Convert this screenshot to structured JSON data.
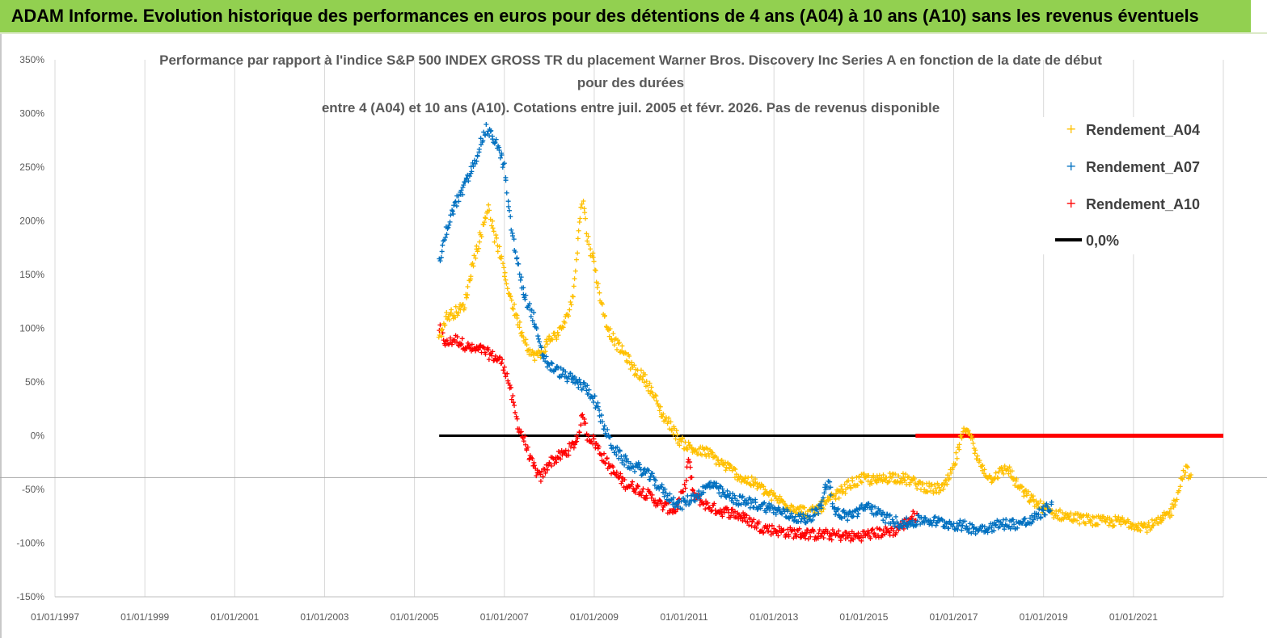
{
  "header": {
    "banner": "ADAM Informe. Evolution historique des performances en euros pour des détentions de 4 ans (A04) à 10 ans (A10) sans les revenus éventuels"
  },
  "colors": {
    "banner_bg": "#92d050",
    "A04": "#ffc000",
    "A07": "#0070c0",
    "A10": "#ff0000",
    "zero_line": "#000000",
    "grid": "#d9d9d9"
  },
  "chart_data": {
    "type": "scatter",
    "title_lines": [
      "Performance par rapport à l'indice S&P 500 INDEX GROSS TR  du placement Warner Bros. Discovery Inc Series A en fonction de la date de début",
      "pour des durées",
      "entre 4 (A04) et 10 ans (A10). Cotations entre juil. 2005 et févr. 2026. Pas de revenus disponible"
    ],
    "x_ticks": [
      "01/01/1997",
      "01/01/1999",
      "01/01/2001",
      "01/01/2003",
      "01/01/2005",
      "01/01/2007",
      "01/01/2009",
      "01/01/2011",
      "01/01/2013",
      "01/01/2015",
      "01/01/2017",
      "01/01/2019",
      "01/01/2021"
    ],
    "y_ticks": [
      "350%",
      "300%",
      "250%",
      "200%",
      "150%",
      "100%",
      "50%",
      "0%",
      "-50%",
      "-100%",
      "-150%"
    ],
    "ylim": [
      -150,
      350
    ],
    "xlim": [
      1997.0,
      2023.0
    ],
    "grid": "vertical",
    "legend_position": "top-right",
    "series": [
      {
        "name": "Rendement_A04",
        "points": [
          [
            2005.55,
            90
          ],
          [
            2005.7,
            110
          ],
          [
            2005.9,
            115
          ],
          [
            2006.1,
            120
          ],
          [
            2006.3,
            160
          ],
          [
            2006.5,
            190
          ],
          [
            2006.65,
            215
          ],
          [
            2006.75,
            190
          ],
          [
            2006.9,
            170
          ],
          [
            2007.0,
            150
          ],
          [
            2007.2,
            120
          ],
          [
            2007.4,
            95
          ],
          [
            2007.6,
            75
          ],
          [
            2007.8,
            75
          ],
          [
            2008.0,
            90
          ],
          [
            2008.2,
            95
          ],
          [
            2008.4,
            110
          ],
          [
            2008.55,
            135
          ],
          [
            2008.65,
            195
          ],
          [
            2008.75,
            220
          ],
          [
            2008.85,
            185
          ],
          [
            2009.0,
            160
          ],
          [
            2009.15,
            125
          ],
          [
            2009.3,
            100
          ],
          [
            2009.5,
            85
          ],
          [
            2009.7,
            75
          ],
          [
            2009.9,
            60
          ],
          [
            2010.1,
            55
          ],
          [
            2010.3,
            40
          ],
          [
            2010.5,
            20
          ],
          [
            2010.7,
            10
          ],
          [
            2010.9,
            -5
          ],
          [
            2011.1,
            -10
          ],
          [
            2011.3,
            -15
          ],
          [
            2011.5,
            -15
          ],
          [
            2011.8,
            -25
          ],
          [
            2012.0,
            -30
          ],
          [
            2012.3,
            -40
          ],
          [
            2012.6,
            -45
          ],
          [
            2012.9,
            -55
          ],
          [
            2013.2,
            -62
          ],
          [
            2013.5,
            -68
          ],
          [
            2013.8,
            -72
          ],
          [
            2014.1,
            -65
          ],
          [
            2014.4,
            -55
          ],
          [
            2014.7,
            -45
          ],
          [
            2015.0,
            -40
          ],
          [
            2015.3,
            -42
          ],
          [
            2015.6,
            -38
          ],
          [
            2015.9,
            -40
          ],
          [
            2016.2,
            -45
          ],
          [
            2016.5,
            -50
          ],
          [
            2016.8,
            -48
          ],
          [
            2017.0,
            -30
          ],
          [
            2017.15,
            -5
          ],
          [
            2017.3,
            10
          ],
          [
            2017.5,
            -20
          ],
          [
            2017.8,
            -40
          ],
          [
            2018.0,
            -35
          ],
          [
            2018.2,
            -30
          ],
          [
            2018.4,
            -45
          ],
          [
            2018.6,
            -55
          ],
          [
            2018.9,
            -65
          ],
          [
            2019.2,
            -72
          ],
          [
            2019.5,
            -75
          ],
          [
            2019.9,
            -78
          ],
          [
            2020.3,
            -80
          ],
          [
            2020.7,
            -80
          ],
          [
            2021.0,
            -82
          ],
          [
            2021.3,
            -85
          ],
          [
            2021.6,
            -80
          ],
          [
            2021.85,
            -70
          ],
          [
            2022.0,
            -50
          ],
          [
            2022.15,
            -30
          ],
          [
            2022.3,
            -40
          ]
        ]
      },
      {
        "name": "Rendement_A07",
        "points": [
          [
            2005.55,
            160
          ],
          [
            2005.7,
            190
          ],
          [
            2005.9,
            215
          ],
          [
            2006.1,
            230
          ],
          [
            2006.3,
            250
          ],
          [
            2006.45,
            270
          ],
          [
            2006.6,
            285
          ],
          [
            2006.8,
            275
          ],
          [
            2007.0,
            250
          ],
          [
            2007.1,
            210
          ],
          [
            2007.25,
            170
          ],
          [
            2007.45,
            130
          ],
          [
            2007.65,
            110
          ],
          [
            2007.8,
            80
          ],
          [
            2008.0,
            65
          ],
          [
            2008.2,
            60
          ],
          [
            2008.4,
            55
          ],
          [
            2008.6,
            50
          ],
          [
            2008.8,
            45
          ],
          [
            2009.0,
            35
          ],
          [
            2009.2,
            10
          ],
          [
            2009.4,
            -10
          ],
          [
            2009.6,
            -20
          ],
          [
            2009.8,
            -28
          ],
          [
            2010.0,
            -30
          ],
          [
            2010.3,
            -40
          ],
          [
            2010.6,
            -55
          ],
          [
            2010.9,
            -65
          ],
          [
            2011.1,
            -60
          ],
          [
            2011.3,
            -55
          ],
          [
            2011.6,
            -45
          ],
          [
            2011.9,
            -55
          ],
          [
            2012.2,
            -60
          ],
          [
            2012.5,
            -63
          ],
          [
            2012.8,
            -66
          ],
          [
            2013.1,
            -70
          ],
          [
            2013.4,
            -75
          ],
          [
            2013.7,
            -78
          ],
          [
            2014.0,
            -70
          ],
          [
            2014.2,
            -40
          ],
          [
            2014.35,
            -70
          ],
          [
            2014.6,
            -75
          ],
          [
            2014.9,
            -70
          ],
          [
            2015.1,
            -65
          ],
          [
            2015.4,
            -75
          ],
          [
            2015.7,
            -80
          ],
          [
            2016.0,
            -82
          ],
          [
            2016.3,
            -78
          ],
          [
            2016.6,
            -80
          ],
          [
            2016.9,
            -82
          ],
          [
            2017.2,
            -84
          ],
          [
            2017.5,
            -87
          ],
          [
            2017.8,
            -85
          ],
          [
            2018.1,
            -82
          ],
          [
            2018.4,
            -82
          ],
          [
            2018.7,
            -80
          ],
          [
            2019.0,
            -70
          ],
          [
            2019.2,
            -65
          ]
        ]
      },
      {
        "name": "Rendement_A10",
        "points": [
          [
            2005.55,
            100
          ],
          [
            2005.7,
            85
          ],
          [
            2005.9,
            90
          ],
          [
            2006.1,
            85
          ],
          [
            2006.3,
            80
          ],
          [
            2006.5,
            80
          ],
          [
            2006.7,
            75
          ],
          [
            2006.9,
            70
          ],
          [
            2007.0,
            65
          ],
          [
            2007.15,
            40
          ],
          [
            2007.3,
            10
          ],
          [
            2007.45,
            -5
          ],
          [
            2007.6,
            -25
          ],
          [
            2007.8,
            -40
          ],
          [
            2008.0,
            -25
          ],
          [
            2008.2,
            -20
          ],
          [
            2008.4,
            -15
          ],
          [
            2008.6,
            -5
          ],
          [
            2008.75,
            20
          ],
          [
            2008.85,
            0
          ],
          [
            2009.0,
            -5
          ],
          [
            2009.2,
            -20
          ],
          [
            2009.45,
            -35
          ],
          [
            2009.7,
            -45
          ],
          [
            2009.9,
            -48
          ],
          [
            2010.2,
            -55
          ],
          [
            2010.5,
            -65
          ],
          [
            2010.8,
            -70
          ],
          [
            2011.0,
            -50
          ],
          [
            2011.1,
            -20
          ],
          [
            2011.2,
            -55
          ],
          [
            2011.5,
            -65
          ],
          [
            2011.8,
            -70
          ],
          [
            2012.1,
            -72
          ],
          [
            2012.4,
            -78
          ],
          [
            2012.7,
            -85
          ],
          [
            2013.0,
            -88
          ],
          [
            2013.3,
            -90
          ],
          [
            2013.6,
            -91
          ],
          [
            2013.9,
            -92
          ],
          [
            2014.2,
            -92
          ],
          [
            2014.5,
            -93
          ],
          [
            2014.8,
            -94
          ],
          [
            2015.1,
            -92
          ],
          [
            2015.4,
            -90
          ],
          [
            2015.7,
            -88
          ],
          [
            2015.9,
            -82
          ],
          [
            2016.1,
            -75
          ],
          [
            2016.2,
            -75
          ]
        ]
      },
      {
        "name": "0,0%",
        "points": [
          [
            2005.55,
            0
          ],
          [
            2023.0,
            0
          ]
        ]
      },
      {
        "name": "",
        "points": [
          [
            2016.15,
            0
          ],
          [
            2023.0,
            0
          ]
        ]
      }
    ]
  }
}
